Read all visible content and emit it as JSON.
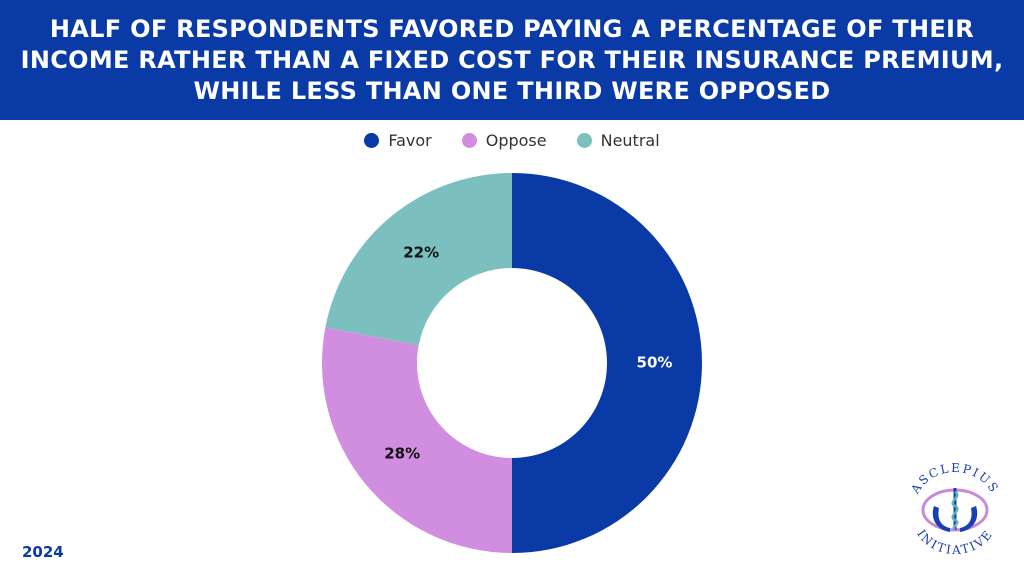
{
  "header": {
    "title": "HALF OF RESPONDENTS FAVORED PAYING A PERCENTAGE OF THEIR INCOME RATHER THAN A FIXED COST FOR THEIR INSURANCE PREMIUM, WHILE LESS THAN ONE THIRD WERE OPPOSED"
  },
  "footer": {
    "year": "2024"
  },
  "logo": {
    "name": "asclepius-initiative-logo",
    "top_text": "ASCLEPIUS",
    "bottom_text": "INITIATIVE"
  },
  "colors": {
    "header_bg": "#0a3aa6",
    "favor": "#0a3aa6",
    "oppose": "#d18ee0",
    "neutral": "#7bc0be"
  },
  "chart_data": {
    "type": "pie",
    "variant": "donut",
    "title": "HALF OF RESPONDENTS FAVORED PAYING A PERCENTAGE OF THEIR INCOME RATHER THAN A FIXED COST FOR THEIR INSURANCE PREMIUM, WHILE LESS THAN ONE THIRD WERE OPPOSED",
    "legend_position": "top",
    "slices": [
      {
        "label": "Favor",
        "value": 50,
        "display": "50%",
        "color": "#0a3aa6",
        "label_color": "#ffffff"
      },
      {
        "label": "Oppose",
        "value": 28,
        "display": "28%",
        "color": "#d18ee0",
        "label_color": "#111111"
      },
      {
        "label": "Neutral",
        "value": 22,
        "display": "22%",
        "color": "#7bc0be",
        "label_color": "#111111"
      }
    ]
  }
}
